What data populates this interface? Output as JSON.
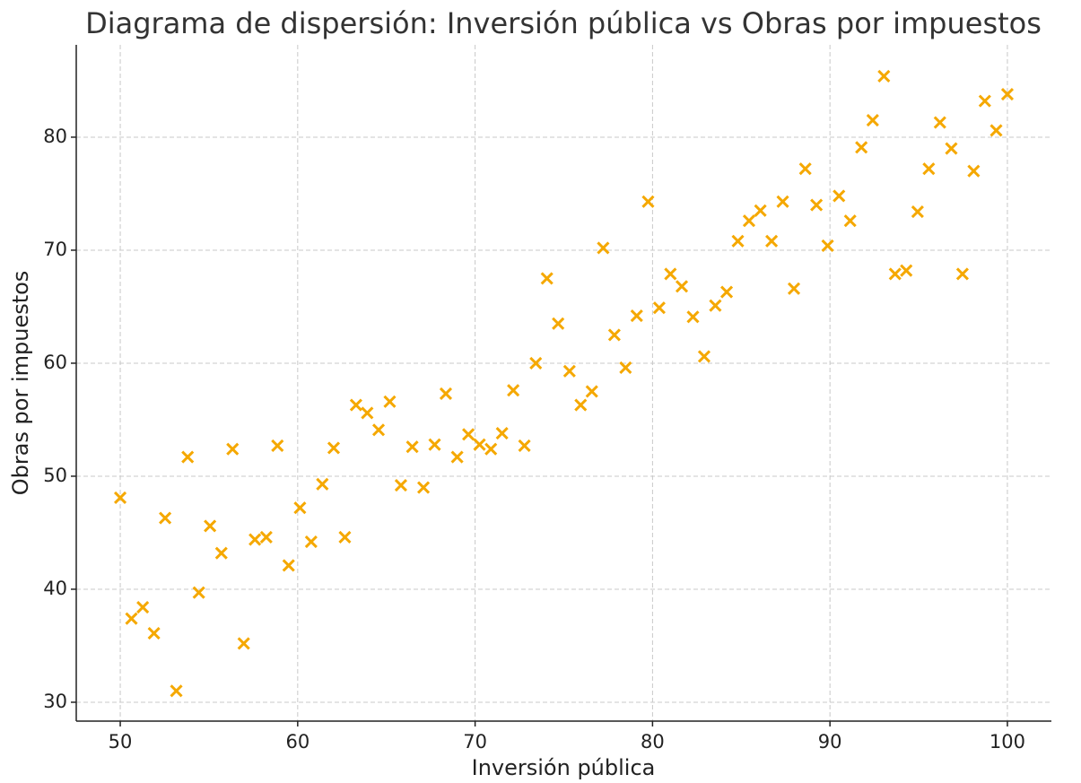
{
  "chart_data": {
    "type": "scatter",
    "title": "Diagrama de dispersión: Inversión pública vs Obras por impuestos",
    "x_label": "Inversión pública",
    "y_label": "Obras por impuestos",
    "color": "#f5a800",
    "marker": "x",
    "grid": true,
    "xlim": [
      47.52,
      102.48
    ],
    "ylim": [
      28.33,
      88.17
    ],
    "xticks": [
      50,
      60,
      70,
      80,
      90,
      100
    ],
    "yticks": [
      30,
      40,
      50,
      60,
      70,
      80
    ],
    "x": [
      50,
      50.63,
      51.27,
      51.9,
      52.53,
      53.16,
      53.8,
      54.43,
      55.06,
      55.7,
      56.33,
      56.96,
      57.59,
      58.23,
      58.86,
      59.49,
      60.13,
      60.76,
      61.39,
      62.03,
      62.66,
      63.29,
      63.92,
      64.56,
      65.19,
      65.82,
      66.46,
      67.09,
      67.72,
      68.35,
      68.99,
      69.62,
      70.25,
      70.89,
      71.52,
      72.15,
      72.78,
      73.42,
      74.05,
      74.68,
      75.32,
      75.95,
      76.58,
      77.22,
      77.85,
      78.48,
      79.11,
      79.75,
      80.38,
      81.01,
      81.65,
      82.28,
      82.91,
      83.54,
      84.18,
      84.81,
      85.44,
      86.08,
      86.71,
      87.34,
      87.97,
      88.61,
      89.24,
      89.87,
      90.51,
      91.14,
      91.77,
      92.41,
      93.04,
      93.67,
      94.3,
      94.94,
      95.57,
      96.2,
      96.84,
      97.47,
      98.1,
      98.73,
      99.37,
      100
    ],
    "values": [
      48.1,
      37.4,
      38.4,
      36.1,
      46.3,
      31.0,
      51.7,
      39.7,
      45.6,
      43.2,
      52.4,
      35.2,
      44.4,
      44.6,
      52.7,
      42.1,
      47.2,
      44.2,
      49.3,
      52.5,
      44.6,
      56.3,
      55.6,
      54.1,
      56.6,
      49.2,
      52.6,
      49.0,
      52.8,
      57.3,
      51.7,
      53.7,
      52.8,
      52.4,
      53.8,
      57.6,
      52.7,
      60.0,
      67.5,
      63.5,
      59.3,
      56.3,
      57.5,
      70.2,
      62.5,
      59.6,
      64.2,
      74.3,
      64.9,
      67.9,
      66.8,
      64.1,
      60.6,
      65.1,
      66.3,
      70.8,
      72.6,
      73.5,
      70.8,
      74.3,
      66.6,
      77.2,
      74.0,
      70.4,
      74.8,
      72.6,
      79.1,
      81.5,
      85.4,
      67.9,
      68.2,
      73.4,
      77.2,
      81.3,
      79.0,
      67.9,
      77.0,
      83.2,
      80.6,
      83.8
    ]
  }
}
